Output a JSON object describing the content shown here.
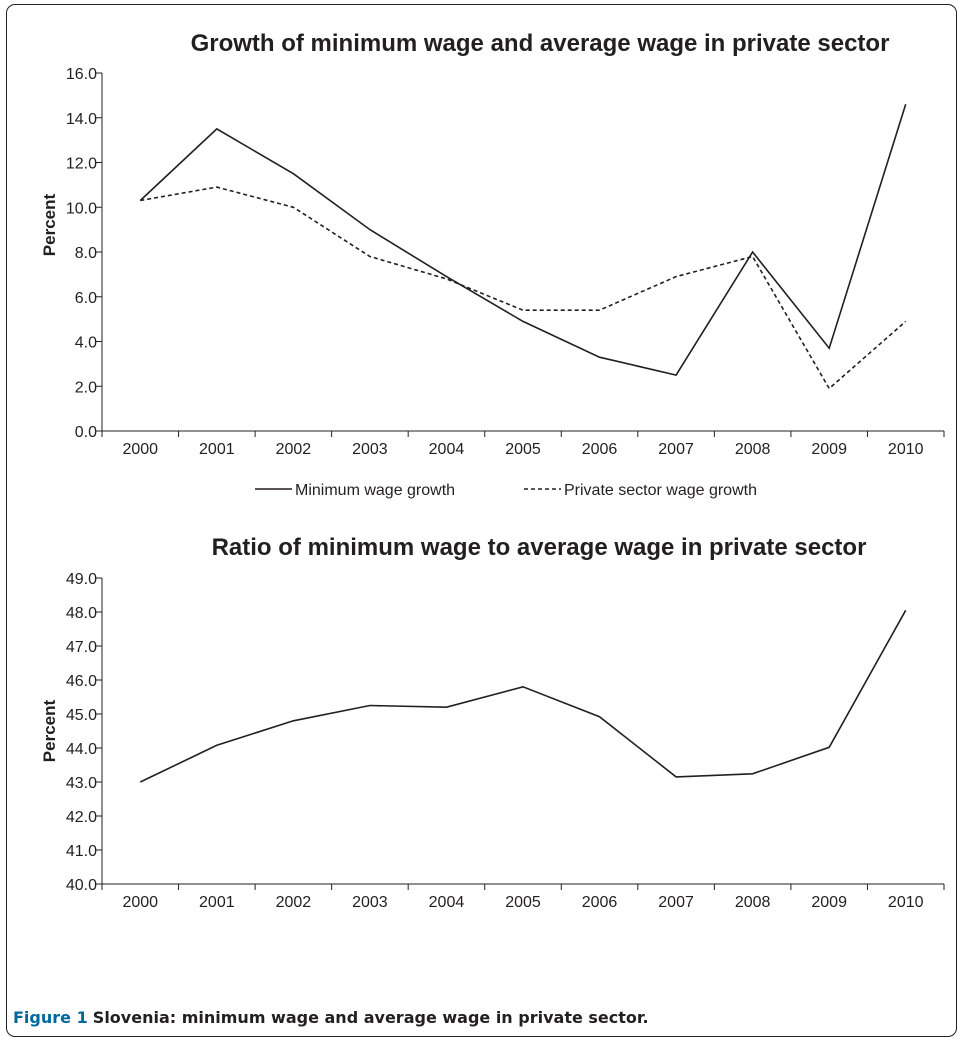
{
  "caption": {
    "label": "Figure 1",
    "text": "Slovenia: minimum wage and average wage in private sector."
  },
  "chart_data": [
    {
      "type": "line",
      "title": "Growth of minimum wage and average wage in private sector",
      "xlabel": "",
      "ylabel": "Percent",
      "categories": [
        "2000",
        "2001",
        "2002",
        "2003",
        "2004",
        "2005",
        "2006",
        "2007",
        "2008",
        "2009",
        "2010"
      ],
      "ylim": [
        0,
        16
      ],
      "ytick_step": 2,
      "ytick_decimals": 1,
      "grid": false,
      "legend_position": "bottom",
      "series": [
        {
          "name": "Minimum wage growth",
          "style": "solid",
          "color": "#231f20",
          "values": [
            10.3,
            13.5,
            11.5,
            9.0,
            6.9,
            4.9,
            3.3,
            2.5,
            8.0,
            3.7,
            14.6
          ]
        },
        {
          "name": "Private sector wage growth",
          "style": "dashed",
          "color": "#231f20",
          "values": [
            10.3,
            10.9,
            10.0,
            7.8,
            6.8,
            5.4,
            5.4,
            6.9,
            7.8,
            1.9,
            4.9
          ]
        }
      ]
    },
    {
      "type": "line",
      "title": "Ratio of minimum wage to average wage in private sector",
      "xlabel": "",
      "ylabel": "Percent",
      "categories": [
        "2000",
        "2001",
        "2002",
        "2003",
        "2004",
        "2005",
        "2006",
        "2007",
        "2008",
        "2009",
        "2010"
      ],
      "ylim": [
        40,
        49
      ],
      "ytick_step": 1,
      "ytick_decimals": 1,
      "grid": false,
      "legend_position": "none",
      "series": [
        {
          "style": "solid",
          "color": "#231f20",
          "values": [
            43.0,
            44.08,
            44.8,
            45.25,
            45.2,
            45.8,
            44.92,
            43.15,
            43.24,
            44.02,
            48.05
          ]
        }
      ]
    }
  ]
}
